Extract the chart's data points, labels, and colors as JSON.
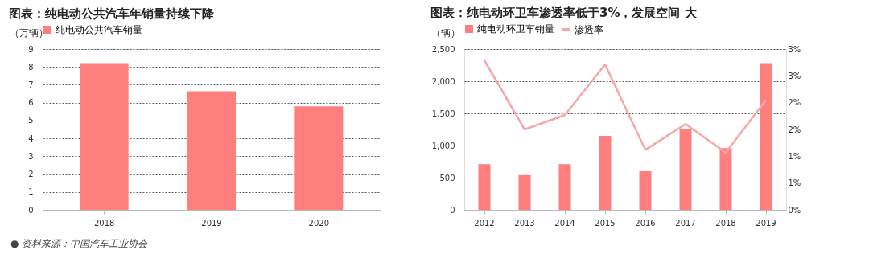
{
  "chart_data": [
    {
      "type": "bar",
      "title": "图表：纯电动公共汽车年销量持续下降",
      "ylabel": "（万辆）",
      "categories": [
        "2018",
        "2019",
        "2020"
      ],
      "series": [
        {
          "name": "纯电动公共汽车销量",
          "color": "#ff7f7f",
          "values": [
            8.21,
            6.64,
            5.79
          ]
        }
      ],
      "ylim": [
        0,
        9
      ],
      "yticks": [
        0,
        1,
        2,
        3,
        4,
        5,
        6,
        7,
        8,
        9
      ],
      "grid": "y",
      "legend": "top",
      "annotations": [
        "● 资料来源：中国汽车工业协会"
      ]
    },
    {
      "type": "bar",
      "title": "图表：纯电动环卫车渗透率低于3%，发展空间 大",
      "ylabel": "（辆）",
      "categories": [
        "2012",
        "2013",
        "2014",
        "2015",
        "2016",
        "2017",
        "2018",
        "2019"
      ],
      "series": [
        {
          "name": "纯电动环卫车销量",
          "color": "#ff7f7f",
          "values": [
            710,
            540,
            710,
            1150,
            600,
            1250,
            960,
            2280
          ]
        },
        {
          "name": "渗透率",
          "type": "line",
          "axis": "y2",
          "color": "#f6a8a8",
          "values": [
            2.79,
            1.5,
            1.77,
            2.71,
            1.12,
            1.6,
            1.07,
            2.05
          ]
        }
      ],
      "ylim": [
        0,
        2500
      ],
      "yticks": [
        {
          "value": 0,
          "label": "0"
        },
        {
          "value": 500,
          "label": "500"
        },
        {
          "value": 1000,
          "label": "1,000"
        },
        {
          "value": 1500,
          "label": "1,500"
        },
        {
          "value": 2000,
          "label": "2,000"
        },
        {
          "value": 2500,
          "label": "2,500"
        }
      ],
      "y2lim": [
        0,
        3
      ],
      "y2ticks": [
        {
          "value": 0,
          "label": "0%"
        },
        {
          "value": 0.5,
          "label": "1%"
        },
        {
          "value": 1,
          "label": "1%"
        },
        {
          "value": 1.5,
          "label": "2%"
        },
        {
          "value": 2,
          "label": "2%"
        },
        {
          "value": 2.5,
          "label": "3%"
        },
        {
          "value": 3,
          "label": "3%"
        }
      ],
      "grid": "y",
      "legend": "top"
    }
  ]
}
